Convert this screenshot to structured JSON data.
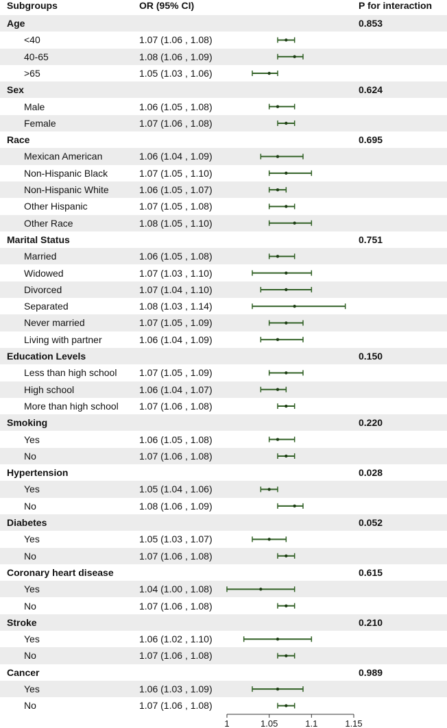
{
  "chart_data": {
    "type": "forest",
    "columns": {
      "subgroups": "Subgroups",
      "or": "OR (95% CI)",
      "p": "P for interaction"
    },
    "x_ticks": [
      "1",
      "1.05",
      "1.1",
      "1.15"
    ],
    "xlim": [
      1,
      1.15
    ],
    "color": "#2f5f23",
    "rows": [
      {
        "type": "group",
        "label": "Age",
        "p": "0.853"
      },
      {
        "type": "item",
        "label": "<40",
        "or_text": "1.07 (1.06 , 1.08)",
        "or": 1.07,
        "lo": 1.06,
        "hi": 1.08
      },
      {
        "type": "item",
        "label": "40-65",
        "or_text": "1.08 (1.06 , 1.09)",
        "or": 1.08,
        "lo": 1.06,
        "hi": 1.09
      },
      {
        "type": "item",
        "label": ">65",
        "or_text": "1.05 (1.03 , 1.06)",
        "or": 1.05,
        "lo": 1.03,
        "hi": 1.06
      },
      {
        "type": "group",
        "label": "Sex",
        "p": "0.624"
      },
      {
        "type": "item",
        "label": "Male",
        "or_text": "1.06 (1.05 , 1.08)",
        "or": 1.06,
        "lo": 1.05,
        "hi": 1.08
      },
      {
        "type": "item",
        "label": "Female",
        "or_text": "1.07 (1.06 , 1.08)",
        "or": 1.07,
        "lo": 1.06,
        "hi": 1.08
      },
      {
        "type": "group",
        "label": "Race",
        "p": "0.695"
      },
      {
        "type": "item",
        "label": "Mexican American",
        "or_text": "1.06 (1.04 , 1.09)",
        "or": 1.06,
        "lo": 1.04,
        "hi": 1.09
      },
      {
        "type": "item",
        "label": "Non-Hispanic Black",
        "or_text": "1.07 (1.05 , 1.10)",
        "or": 1.07,
        "lo": 1.05,
        "hi": 1.1
      },
      {
        "type": "item",
        "label": "Non-Hispanic White",
        "or_text": "1.06 (1.05 , 1.07)",
        "or": 1.06,
        "lo": 1.05,
        "hi": 1.07
      },
      {
        "type": "item",
        "label": "Other Hispanic",
        "or_text": "1.07 (1.05 , 1.08)",
        "or": 1.07,
        "lo": 1.05,
        "hi": 1.08
      },
      {
        "type": "item",
        "label": "Other Race",
        "or_text": "1.08 (1.05 , 1.10)",
        "or": 1.08,
        "lo": 1.05,
        "hi": 1.1
      },
      {
        "type": "group",
        "label": "Marital Status",
        "p": "0.751"
      },
      {
        "type": "item",
        "label": "Married",
        "or_text": "1.06 (1.05 , 1.08)",
        "or": 1.06,
        "lo": 1.05,
        "hi": 1.08
      },
      {
        "type": "item",
        "label": "Widowed",
        "or_text": "1.07 (1.03 , 1.10)",
        "or": 1.07,
        "lo": 1.03,
        "hi": 1.1
      },
      {
        "type": "item",
        "label": "Divorced",
        "or_text": "1.07 (1.04 , 1.10)",
        "or": 1.07,
        "lo": 1.04,
        "hi": 1.1
      },
      {
        "type": "item",
        "label": "Separated",
        "or_text": "1.08 (1.03 , 1.14)",
        "or": 1.08,
        "lo": 1.03,
        "hi": 1.14
      },
      {
        "type": "item",
        "label": "Never married",
        "or_text": "1.07 (1.05 , 1.09)",
        "or": 1.07,
        "lo": 1.05,
        "hi": 1.09
      },
      {
        "type": "item",
        "label": "Living with partner",
        "or_text": "1.06 (1.04 , 1.09)",
        "or": 1.06,
        "lo": 1.04,
        "hi": 1.09
      },
      {
        "type": "group",
        "label": "Education Levels",
        "p": "0.150"
      },
      {
        "type": "item",
        "label": "Less than high school",
        "or_text": "1.07 (1.05 , 1.09)",
        "or": 1.07,
        "lo": 1.05,
        "hi": 1.09
      },
      {
        "type": "item",
        "label": "High school",
        "or_text": "1.06 (1.04 , 1.07)",
        "or": 1.06,
        "lo": 1.04,
        "hi": 1.07
      },
      {
        "type": "item",
        "label": "More than high school",
        "or_text": "1.07 (1.06 , 1.08)",
        "or": 1.07,
        "lo": 1.06,
        "hi": 1.08
      },
      {
        "type": "group",
        "label": "Smoking",
        "p": "0.220"
      },
      {
        "type": "item",
        "label": "Yes",
        "or_text": "1.06 (1.05 , 1.08)",
        "or": 1.06,
        "lo": 1.05,
        "hi": 1.08
      },
      {
        "type": "item",
        "label": "No",
        "or_text": "1.07 (1.06 , 1.08)",
        "or": 1.07,
        "lo": 1.06,
        "hi": 1.08
      },
      {
        "type": "group",
        "label": "Hypertension",
        "p": "0.028"
      },
      {
        "type": "item",
        "label": "Yes",
        "or_text": "1.05 (1.04 , 1.06)",
        "or": 1.05,
        "lo": 1.04,
        "hi": 1.06
      },
      {
        "type": "item",
        "label": "No",
        "or_text": "1.08 (1.06 , 1.09)",
        "or": 1.08,
        "lo": 1.06,
        "hi": 1.09
      },
      {
        "type": "group",
        "label": "Diabetes",
        "p": "0.052"
      },
      {
        "type": "item",
        "label": "Yes",
        "or_text": "1.05 (1.03 , 1.07)",
        "or": 1.05,
        "lo": 1.03,
        "hi": 1.07
      },
      {
        "type": "item",
        "label": "No",
        "or_text": "1.07 (1.06 , 1.08)",
        "or": 1.07,
        "lo": 1.06,
        "hi": 1.08
      },
      {
        "type": "group",
        "label": "Coronary heart disease",
        "p": "0.615"
      },
      {
        "type": "item",
        "label": "Yes",
        "or_text": "1.04 (1.00 , 1.08)",
        "or": 1.04,
        "lo": 1.0,
        "hi": 1.08
      },
      {
        "type": "item",
        "label": "No",
        "or_text": "1.07 (1.06 , 1.08)",
        "or": 1.07,
        "lo": 1.06,
        "hi": 1.08
      },
      {
        "type": "group",
        "label": "Stroke",
        "p": "0.210"
      },
      {
        "type": "item",
        "label": "Yes",
        "or_text": "1.06 (1.02 , 1.10)",
        "or": 1.06,
        "lo": 1.02,
        "hi": 1.1
      },
      {
        "type": "item",
        "label": "No",
        "or_text": "1.07 (1.06 , 1.08)",
        "or": 1.07,
        "lo": 1.06,
        "hi": 1.08
      },
      {
        "type": "group",
        "label": "Cancer",
        "p": "0.989"
      },
      {
        "type": "item",
        "label": "Yes",
        "or_text": "1.06 (1.03 , 1.09)",
        "or": 1.06,
        "lo": 1.03,
        "hi": 1.09
      },
      {
        "type": "item",
        "label": "No",
        "or_text": "1.07 (1.06 , 1.08)",
        "or": 1.07,
        "lo": 1.06,
        "hi": 1.08
      }
    ]
  }
}
